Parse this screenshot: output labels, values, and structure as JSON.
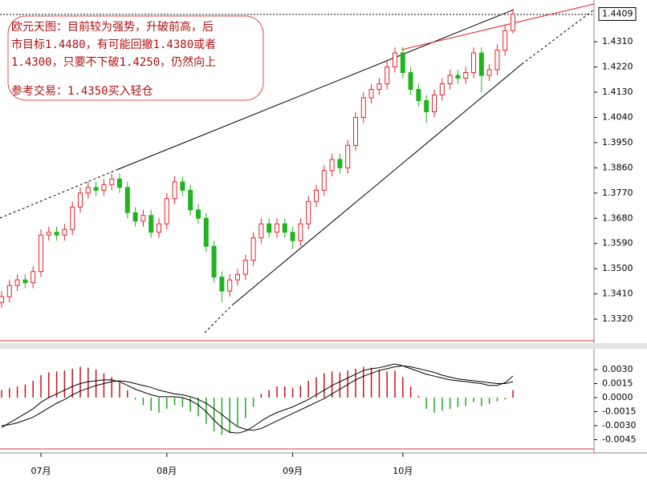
{
  "chart_data": [
    {
      "type": "candlestick",
      "categories": [
        null,
        null,
        null,
        null,
        null,
        "07月",
        null,
        null,
        null,
        null,
        null,
        null,
        null,
        null,
        null,
        null,
        null,
        null,
        null,
        null,
        null,
        "08月",
        null,
        null,
        null,
        null,
        null,
        null,
        null,
        null,
        null,
        null,
        null,
        null,
        null,
        null,
        null,
        "09月",
        null,
        null,
        null,
        null,
        null,
        null,
        null,
        null,
        null,
        null,
        null,
        null,
        null,
        "10月",
        null,
        null,
        null,
        null,
        null,
        null,
        null,
        null,
        null,
        null,
        null,
        null,
        null,
        null
      ],
      "open": [
        1.338,
        1.34,
        1.344,
        1.346,
        1.345,
        1.349,
        1.362,
        1.363,
        1.362,
        1.364,
        1.372,
        1.377,
        1.379,
        1.378,
        1.38,
        1.382,
        1.379,
        1.37,
        1.367,
        1.369,
        1.363,
        1.366,
        1.375,
        1.381,
        1.378,
        1.371,
        1.368,
        1.358,
        1.347,
        1.342,
        1.346,
        1.348,
        1.353,
        1.361,
        1.366,
        1.363,
        1.366,
        1.363,
        1.36,
        1.366,
        1.374,
        1.378,
        1.385,
        1.389,
        1.386,
        1.394,
        1.404,
        1.411,
        1.414,
        1.416,
        1.422,
        1.427,
        1.42,
        1.414,
        1.41,
        1.406,
        1.412,
        1.416,
        1.419,
        1.418,
        1.42,
        1.427,
        1.419,
        1.421,
        1.428,
        1.435
      ],
      "high": [
        1.342,
        1.346,
        1.348,
        1.348,
        1.351,
        1.364,
        1.365,
        1.365,
        1.366,
        1.374,
        1.379,
        1.381,
        1.381,
        1.382,
        1.384,
        1.384,
        1.381,
        1.372,
        1.371,
        1.371,
        1.368,
        1.377,
        1.383,
        1.383,
        1.38,
        1.373,
        1.37,
        1.36,
        1.349,
        1.348,
        1.35,
        1.355,
        1.363,
        1.368,
        1.368,
        1.368,
        1.368,
        1.365,
        1.368,
        1.376,
        1.38,
        1.387,
        1.391,
        1.391,
        1.396,
        1.406,
        1.413,
        1.416,
        1.418,
        1.424,
        1.429,
        1.429,
        1.422,
        1.416,
        1.412,
        1.414,
        1.418,
        1.421,
        1.421,
        1.422,
        1.429,
        1.429,
        1.423,
        1.43,
        1.437,
        1.4425
      ],
      "low": [
        1.336,
        1.338,
        1.342,
        1.343,
        1.343,
        1.347,
        1.36,
        1.36,
        1.36,
        1.362,
        1.37,
        1.375,
        1.376,
        1.376,
        1.378,
        1.377,
        1.368,
        1.365,
        1.365,
        1.361,
        1.361,
        1.364,
        1.373,
        1.376,
        1.369,
        1.366,
        1.356,
        1.345,
        1.338,
        1.34,
        1.344,
        1.346,
        1.351,
        1.359,
        1.361,
        1.361,
        1.361,
        1.357,
        1.358,
        1.364,
        1.372,
        1.376,
        1.383,
        1.384,
        1.384,
        1.392,
        1.402,
        1.409,
        1.412,
        1.414,
        1.42,
        1.418,
        1.412,
        1.408,
        1.402,
        1.404,
        1.41,
        1.414,
        1.416,
        1.416,
        1.418,
        1.413,
        1.417,
        1.419,
        1.426,
        1.434
      ],
      "close": [
        1.34,
        1.344,
        1.346,
        1.345,
        1.349,
        1.362,
        1.363,
        1.362,
        1.364,
        1.372,
        1.377,
        1.379,
        1.378,
        1.38,
        1.382,
        1.379,
        1.37,
        1.367,
        1.369,
        1.363,
        1.366,
        1.375,
        1.381,
        1.378,
        1.371,
        1.368,
        1.358,
        1.347,
        1.342,
        1.346,
        1.348,
        1.353,
        1.361,
        1.366,
        1.363,
        1.366,
        1.363,
        1.36,
        1.366,
        1.374,
        1.378,
        1.385,
        1.389,
        1.386,
        1.394,
        1.404,
        1.411,
        1.414,
        1.416,
        1.422,
        1.427,
        1.42,
        1.414,
        1.41,
        1.406,
        1.412,
        1.416,
        1.419,
        1.418,
        1.42,
        1.427,
        1.419,
        1.421,
        1.428,
        1.435,
        1.4409
      ],
      "up_color": "#e8222a",
      "down_color": "#1fb51f",
      "ylim": [
        1.3243,
        1.4459
      ],
      "yticks": [
        {
          "value": 1.332,
          "label": "1.3320"
        },
        {
          "value": 1.341,
          "label": "1.3410"
        },
        {
          "value": 1.35,
          "label": "1.3500"
        },
        {
          "value": 1.359,
          "label": "1.3590"
        },
        {
          "value": 1.368,
          "label": "1.3680"
        },
        {
          "value": 1.377,
          "label": "1.3770"
        },
        {
          "value": 1.386,
          "label": "1.3860"
        },
        {
          "value": 1.395,
          "label": "1.3950"
        },
        {
          "value": 1.404,
          "label": "1.4040"
        },
        {
          "value": 1.413,
          "label": "1.4130"
        },
        {
          "value": 1.422,
          "label": "1.4220"
        },
        {
          "value": 1.431,
          "label": "1.4310"
        }
      ],
      "last_price": 1.4409,
      "annotation": {
        "text": [
          "欧元天图：目前较为强势，升破前高，后",
          "市目标1.4480，有可能回撤1.4380或者",
          "1.4300，只要不下破1.4250，仍然向上"
        ],
        "trade": "参考交易：1.4350买入轻仓"
      }
    },
    {
      "type": "macd",
      "histogram": [
        0.0008,
        0.001,
        0.0012,
        0.0014,
        0.0018,
        0.0024,
        0.0027,
        0.0028,
        0.0029,
        0.0031,
        0.0033,
        0.0032,
        0.003,
        0.0026,
        0.0022,
        0.0016,
        0.0008,
        -0.0002,
        -0.0008,
        -0.0014,
        -0.0016,
        -0.0012,
        -0.0008,
        -0.001,
        -0.0015,
        -0.002,
        -0.0028,
        -0.0036,
        -0.004,
        -0.0038,
        -0.003,
        -0.0022,
        -0.001,
        0.0004,
        0.0008,
        0.0012,
        0.0012,
        0.001,
        0.0013,
        0.0018,
        0.0022,
        0.0026,
        0.0028,
        0.0027,
        0.0029,
        0.0031,
        0.0033,
        0.0032,
        0.003,
        0.0028,
        0.0029,
        0.0022,
        0.0012,
        0.0002,
        -0.0012,
        -0.0016,
        -0.0014,
        -0.0012,
        -0.001,
        -0.0009,
        -0.0005,
        -0.0009,
        -0.0007,
        -0.0004,
        -0.0002,
        0.0008
      ],
      "pos_color": "#c8141e",
      "neg_color": "#22aa22",
      "series": [
        {
          "color": "#000000",
          "values": [
            -0.0032,
            -0.0027,
            -0.0022,
            -0.0017,
            -0.0012,
            -0.0005,
            0.0,
            0.0004,
            0.0008,
            0.0012,
            0.0015,
            0.0017,
            0.0018,
            0.0019,
            0.0019,
            0.0017,
            0.0013,
            0.0009,
            0.0006,
            0.0003,
            0.0001,
            0.0001,
            0.0001,
            0.0,
            -0.0003,
            -0.0008,
            -0.0015,
            -0.0024,
            -0.0032,
            -0.0037,
            -0.0038,
            -0.0036,
            -0.0031,
            -0.0025,
            -0.002,
            -0.0016,
            -0.0013,
            -0.001,
            -0.0006,
            -0.0002,
            0.0003,
            0.0008,
            0.0013,
            0.0017,
            0.0021,
            0.0025,
            0.0029,
            0.0031,
            0.0032,
            0.0034,
            0.0036,
            0.0034,
            0.0031,
            0.0028,
            0.0025,
            0.0023,
            0.0021,
            0.0019,
            0.0018,
            0.0017,
            0.0016,
            0.0015,
            0.0013,
            0.0013,
            0.0016,
            0.0023
          ]
        },
        {
          "color": "#000000",
          "values": [
            -0.003,
            -0.0029,
            -0.0027,
            -0.0024,
            -0.0021,
            -0.0016,
            -0.0011,
            -0.0006,
            -0.0002,
            0.0003,
            0.0007,
            0.001,
            0.0013,
            0.0015,
            0.0017,
            0.0018,
            0.0017,
            0.0015,
            0.0013,
            0.0011,
            0.0008,
            0.0006,
            0.0004,
            0.0003,
            0.0001,
            -0.0002,
            -0.0006,
            -0.0012,
            -0.0018,
            -0.0025,
            -0.0031,
            -0.0034,
            -0.0035,
            -0.0033,
            -0.0029,
            -0.0025,
            -0.0021,
            -0.0017,
            -0.0013,
            -0.0009,
            -0.0005,
            -0.0001,
            0.0004,
            0.0009,
            0.0014,
            0.0019,
            0.0023,
            0.0026,
            0.0029,
            0.0031,
            0.0033,
            0.0034,
            0.0033,
            0.0031,
            0.0029,
            0.0027,
            0.0024,
            0.0022,
            0.002,
            0.0019,
            0.0018,
            0.0017,
            0.0016,
            0.0015,
            0.0015,
            0.0017
          ]
        }
      ],
      "ylim": [
        -0.00549,
        0.00506
      ],
      "yticks": [
        {
          "value": 0.003,
          "label": "0.0030"
        },
        {
          "value": 0.0015,
          "label": "0.0015"
        },
        {
          "value": 0,
          "label": "0.0000"
        },
        {
          "value": -0.0015,
          "label": "-0.0015"
        },
        {
          "value": -0.003,
          "label": "-0.0030"
        },
        {
          "value": -0.0045,
          "label": "-0.0045"
        }
      ]
    }
  ]
}
